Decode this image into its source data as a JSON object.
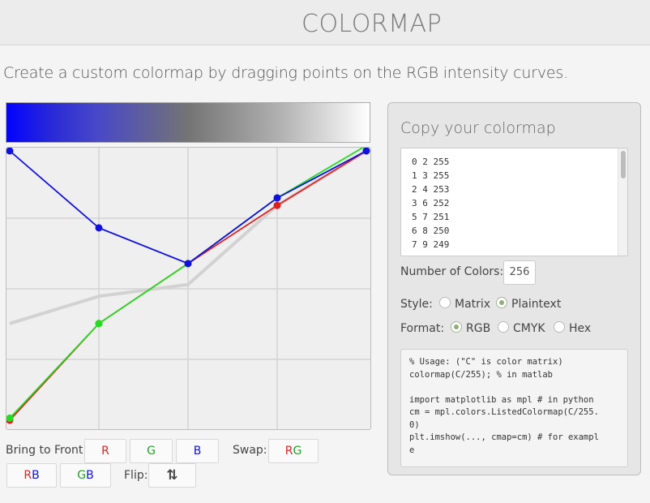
{
  "header": {
    "title": "COLORMAP"
  },
  "subtitle": "Create a custom colormap by dragging points on the RGB intensity curves.",
  "colors": {
    "red": "#e02020",
    "green": "#22dd22",
    "blue": "#1010e0",
    "gray_curve": "#d2d2d2",
    "radio_selected": "#8fae7a"
  },
  "curves": {
    "red": [
      [
        0,
        3
      ],
      [
        63.75,
        93.5
      ],
      [
        127.5,
        149.6
      ],
      [
        191.25,
        204
      ],
      [
        255,
        255
      ]
    ],
    "green": [
      [
        0,
        5
      ],
      [
        63.75,
        93.5
      ],
      [
        127.5,
        149.6
      ],
      [
        191.25,
        211
      ],
      [
        255,
        260
      ]
    ],
    "blue": [
      [
        0,
        255
      ],
      [
        63.75,
        183
      ],
      [
        127.5,
        149.6
      ],
      [
        191.25,
        211
      ],
      [
        255,
        255
      ]
    ],
    "gray": [
      [
        0,
        93.5
      ],
      [
        63.75,
        119
      ],
      [
        127.5,
        130
      ],
      [
        191.25,
        204
      ],
      [
        255,
        255
      ]
    ]
  },
  "controls": {
    "bring_to_front_label": "Bring to Front:",
    "swap_label": "Swap:",
    "flip_label": "Flip:",
    "btn_r": "R",
    "btn_g": "G",
    "btn_b": "B",
    "btn_rg_r": "R",
    "btn_rg_g": "G",
    "btn_rb_r": "R",
    "btn_rb_b": "B",
    "btn_gb_g": "G",
    "btn_gb_b": "B",
    "flip_icon": "⇅"
  },
  "panel": {
    "title": "Copy your colormap",
    "colormap_lines": [
      "0 2 255",
      "1 3 255",
      "2 4 253",
      "3 6 252",
      "5 7 251",
      "6 8 250",
      "7 9 249"
    ],
    "number_of_colors_label": "Number of Colors:",
    "number_of_colors_value": "256",
    "style_label": "Style:",
    "style_options": [
      "Matrix",
      "Plaintext"
    ],
    "style_selected": "Plaintext",
    "format_label": "Format:",
    "format_options": [
      "RGB",
      "CMYK",
      "Hex"
    ],
    "format_selected": "RGB",
    "usage_lines": [
      "% Usage: (\"C\" is color matrix)",
      "colormap(C/255); % in matlab",
      "",
      "import matplotlib as mpl # in python",
      "cm = mpl.colors.ListedColormap(C/255.",
      "0)",
      "plt.imshow(..., cmap=cm) # for exampl",
      "e"
    ]
  }
}
